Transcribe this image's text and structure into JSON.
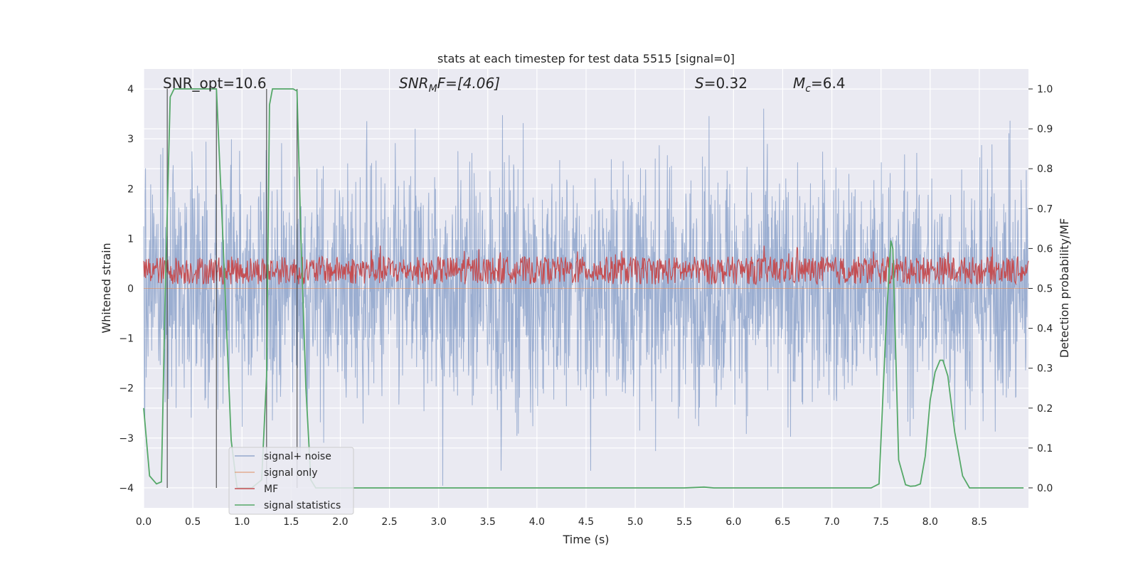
{
  "chart_data": {
    "type": "line",
    "title": "stats at each timestep for test data 5515 [signal=0]",
    "xlabel": "Time (s)",
    "ylabel": "Whitened strain",
    "ylabel_right": "Detection probability/MF",
    "xlim": [
      0.0,
      9.0
    ],
    "ylim": [
      -4.4,
      4.4
    ],
    "ylim_right": [
      -0.05,
      1.05
    ],
    "xticks": [
      0.0,
      0.5,
      1.0,
      1.5,
      2.0,
      2.5,
      3.0,
      3.5,
      4.0,
      4.5,
      5.0,
      5.5,
      6.0,
      6.5,
      7.0,
      7.5,
      8.0,
      8.5
    ],
    "xtick_labels": [
      "0.0",
      "0.5",
      "1.0",
      "1.5",
      "2.0",
      "2.5",
      "3.0",
      "3.5",
      "4.0",
      "4.5",
      "5.0",
      "5.5",
      "6.0",
      "6.5",
      "7.0",
      "7.5",
      "8.0",
      "8.5"
    ],
    "yticks": [
      -4,
      -3,
      -2,
      -1,
      0,
      1,
      2,
      3,
      4
    ],
    "ytick_labels": [
      "−4",
      "−3",
      "−2",
      "−1",
      "0",
      "1",
      "2",
      "3",
      "4"
    ],
    "yticks_right": [
      0.0,
      0.1,
      0.2,
      0.3,
      0.4,
      0.5,
      0.6,
      0.7,
      0.8,
      0.9,
      1.0
    ],
    "ytick_labels_right": [
      "0.0",
      "0.1",
      "0.2",
      "0.3",
      "0.4",
      "0.5",
      "0.6",
      "0.7",
      "0.8",
      "0.9",
      "1.0"
    ],
    "grid": true,
    "legend_position": "lower-left",
    "annotations": {
      "snr_opt": "SNR_opt=10.6",
      "snr_mf_sym": "SNR",
      "snr_mf_sub": "M",
      "snr_mf_rest": "F=[4.06]",
      "s_sym": "S",
      "s_val": "=0.32",
      "mc_sym": "M",
      "mc_sub": "c",
      "mc_val": "=6.4"
    },
    "vertical_markers": [
      0.24,
      0.74,
      1.25,
      1.56
    ],
    "series": [
      {
        "name": "signal+ noise",
        "color": "#4c72b0",
        "axis": "left",
        "style": "dense-noise",
        "envelope_max": 4.0,
        "envelope_min": -4.0,
        "typical_amplitude": 1.6
      },
      {
        "name": "signal only",
        "color": "#dd8452",
        "axis": "left",
        "x": [
          0.0,
          9.0
        ],
        "y": [
          0.0,
          0.0
        ]
      },
      {
        "name": "MF",
        "color": "#c44e52",
        "axis": "right",
        "style": "dense-noise",
        "baseline": 0.545,
        "range": [
          0.5,
          0.63
        ]
      },
      {
        "name": "signal statistics",
        "color": "#55a868",
        "axis": "right",
        "x": [
          0.0,
          0.06,
          0.13,
          0.18,
          0.22,
          0.27,
          0.31,
          0.35,
          0.45,
          0.55,
          0.65,
          0.74,
          0.79,
          0.84,
          0.89,
          0.95,
          1.0,
          1.1,
          1.2,
          1.25,
          1.28,
          1.31,
          1.35,
          1.45,
          1.52,
          1.56,
          1.6,
          1.65,
          1.7,
          1.75,
          1.85,
          2.0,
          3.0,
          4.0,
          5.0,
          5.5,
          5.7,
          5.8,
          6.0,
          7.0,
          7.4,
          7.48,
          7.55,
          7.6,
          7.62,
          7.68,
          7.75,
          7.8,
          7.85,
          7.9,
          7.95,
          8.0,
          8.05,
          8.1,
          8.13,
          8.18,
          8.25,
          8.33,
          8.4,
          8.5,
          8.95
        ],
        "y": [
          0.2,
          0.03,
          0.01,
          0.015,
          0.5,
          0.98,
          1.0,
          1.0,
          1.0,
          1.0,
          1.0,
          1.0,
          0.72,
          0.42,
          0.12,
          0.0,
          0.0,
          0.0,
          0.02,
          0.28,
          0.96,
          1.0,
          1.0,
          1.0,
          1.0,
          0.995,
          0.62,
          0.25,
          0.02,
          0.0,
          0.0,
          0.0,
          0.0,
          0.0,
          0.0,
          0.0,
          0.002,
          0.0,
          0.0,
          0.0,
          0.0,
          0.01,
          0.4,
          0.62,
          0.6,
          0.07,
          0.008,
          0.004,
          0.005,
          0.01,
          0.08,
          0.22,
          0.29,
          0.32,
          0.32,
          0.28,
          0.14,
          0.03,
          0.0,
          0.0,
          0.0
        ]
      }
    ]
  }
}
